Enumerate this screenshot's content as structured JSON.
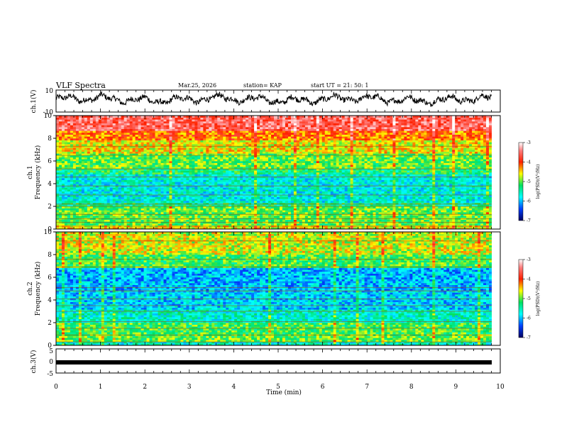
{
  "header": {
    "title": "VLF Spectra",
    "date": "Mar.25, 2026",
    "station": "station= KAP",
    "start": "start  UT  =   21: 50: 1"
  },
  "colors": {
    "low": "#000080",
    "mid": "#00e060",
    "high": "#ff2000",
    "axis": "#000000"
  },
  "chart_data": [
    {
      "type": "line",
      "name": "ch1-waveform",
      "ylabel": "ch.1(V)",
      "ylim": [
        -10,
        10
      ],
      "ytick_labels": [
        "10",
        "-10"
      ],
      "xlim": [
        0,
        10
      ],
      "note": "dense noisy waveform oscillating roughly between -3 and +6 V"
    },
    {
      "type": "heatmap",
      "name": "ch1-spectrogram",
      "ylabel": "ch.1\nFrequency (kHz)",
      "ylabel_lines": [
        "ch.1",
        "Frequency  (kHz)"
      ],
      "ylim": [
        0,
        10
      ],
      "ytick_labels": [
        "0",
        "2",
        "4",
        "6",
        "8",
        "10"
      ],
      "xlim": [
        0,
        9.8
      ],
      "colorbar": {
        "label": "log(PSD)(V²/Hz)",
        "range": [
          -7,
          -3
        ],
        "tick_labels": [
          "-3",
          "-4",
          "-5",
          "-6",
          "-7"
        ]
      },
      "bands": [
        {
          "from": 0.0,
          "to": 0.3,
          "level": -4.6
        },
        {
          "from": 0.3,
          "to": 0.9,
          "level": -5.0
        },
        {
          "from": 0.9,
          "to": 2.0,
          "level": -5.0
        },
        {
          "from": 2.0,
          "to": 2.3,
          "level": -5.4
        },
        {
          "from": 2.3,
          "to": 4.8,
          "level": -5.7
        },
        {
          "from": 4.8,
          "to": 5.4,
          "level": -5.3
        },
        {
          "from": 5.4,
          "to": 6.6,
          "level": -5.0
        },
        {
          "from": 6.6,
          "to": 7.8,
          "level": -4.6
        },
        {
          "from": 7.8,
          "to": 8.6,
          "level": -4.2
        },
        {
          "from": 8.6,
          "to": 10.0,
          "level": -3.6
        }
      ]
    },
    {
      "type": "heatmap",
      "name": "ch2-spectrogram",
      "ylabel": "ch.2\nFrequency (kHz)",
      "ylabel_lines": [
        "ch.2",
        "Frequency  (kHz)"
      ],
      "ylim": [
        0,
        10
      ],
      "ytick_labels": [
        "0",
        "2",
        "4",
        "6",
        "8",
        "10"
      ],
      "xlim": [
        0,
        9.8
      ],
      "colorbar": {
        "label": "log(PSD)(V²/Hz)",
        "range": [
          -7,
          -3
        ],
        "tick_labels": [
          "-3",
          "-4",
          "-5",
          "-6",
          "-7"
        ]
      },
      "bands": [
        {
          "from": 0.0,
          "to": 0.3,
          "level": -5.6
        },
        {
          "from": 0.3,
          "to": 1.0,
          "level": -5.0
        },
        {
          "from": 1.0,
          "to": 2.0,
          "level": -5.1
        },
        {
          "from": 2.0,
          "to": 3.2,
          "level": -5.6
        },
        {
          "from": 3.2,
          "to": 4.8,
          "level": -5.9
        },
        {
          "from": 4.8,
          "to": 6.8,
          "level": -6.0
        },
        {
          "from": 6.8,
          "to": 8.0,
          "level": -5.1
        },
        {
          "from": 8.0,
          "to": 10.0,
          "level": -4.7
        }
      ]
    },
    {
      "type": "line",
      "name": "ch3-signal",
      "ylabel": "ch.3(V)",
      "ylim": [
        -5,
        5
      ],
      "ytick_labels": [
        "5",
        "0",
        "-5"
      ],
      "xlim": [
        0,
        10
      ],
      "level": 0,
      "note": "thick flat line near 0 V"
    }
  ],
  "xaxis": {
    "label": "Time  (min)",
    "range": [
      0,
      10
    ],
    "tick_labels": [
      "0",
      "1",
      "2",
      "3",
      "4",
      "5",
      "6",
      "7",
      "8",
      "9",
      "10"
    ]
  }
}
